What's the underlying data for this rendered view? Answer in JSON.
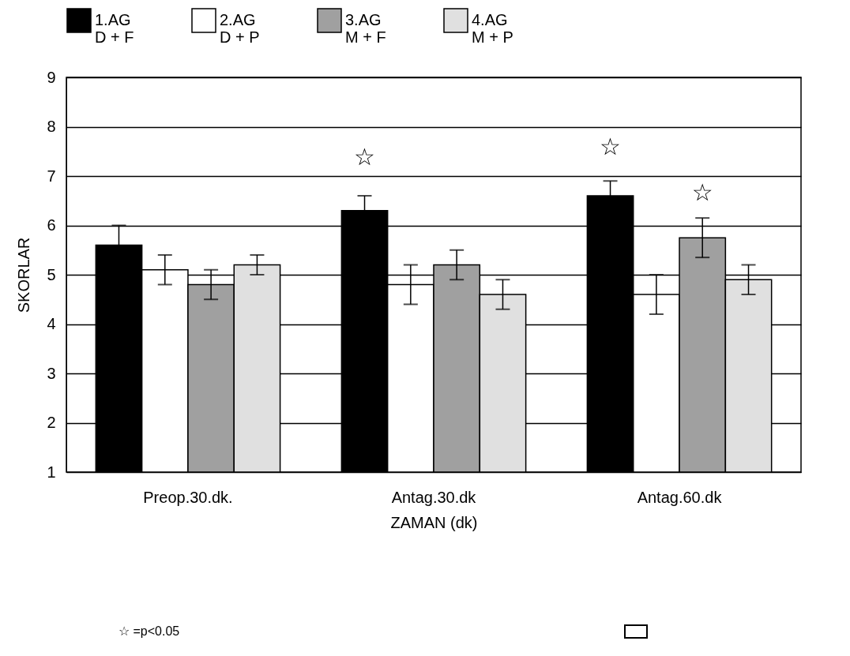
{
  "chart_data": {
    "type": "bar",
    "categories": [
      "Preop.30.dk.",
      "Antag.30.dk",
      "Antag.60.dk"
    ],
    "xlabel": "ZAMAN  (dk)",
    "ylabel": "SKORLAR",
    "series": [
      {
        "name": "1.AG\nD + F",
        "color": "#000000",
        "values": [
          5.6,
          6.3,
          6.6
        ],
        "errors": [
          0.4,
          0.3,
          0.3
        ]
      },
      {
        "name": "2.AG\nD + P",
        "color": "#ffffff",
        "values": [
          5.1,
          4.8,
          4.6
        ],
        "errors": [
          0.3,
          0.4,
          0.4
        ]
      },
      {
        "name": "3.AG\nM + F",
        "color": "#a0a0a0",
        "values": [
          4.8,
          5.2,
          5.75
        ],
        "errors": [
          0.3,
          0.3,
          0.4
        ]
      },
      {
        "name": "4.AG\nM + P",
        "color": "#e0e0e0",
        "values": [
          5.2,
          4.6,
          4.9
        ],
        "errors": [
          0.2,
          0.3,
          0.3
        ]
      }
    ],
    "ylim": [
      1,
      9
    ],
    "yticks": [
      1,
      2,
      3,
      4,
      5,
      6,
      7,
      8,
      9
    ],
    "grid": "y",
    "legend": "top",
    "annotations": [
      "☆",
      "☆",
      "☆",
      "☆ =p<0.05"
    ]
  }
}
